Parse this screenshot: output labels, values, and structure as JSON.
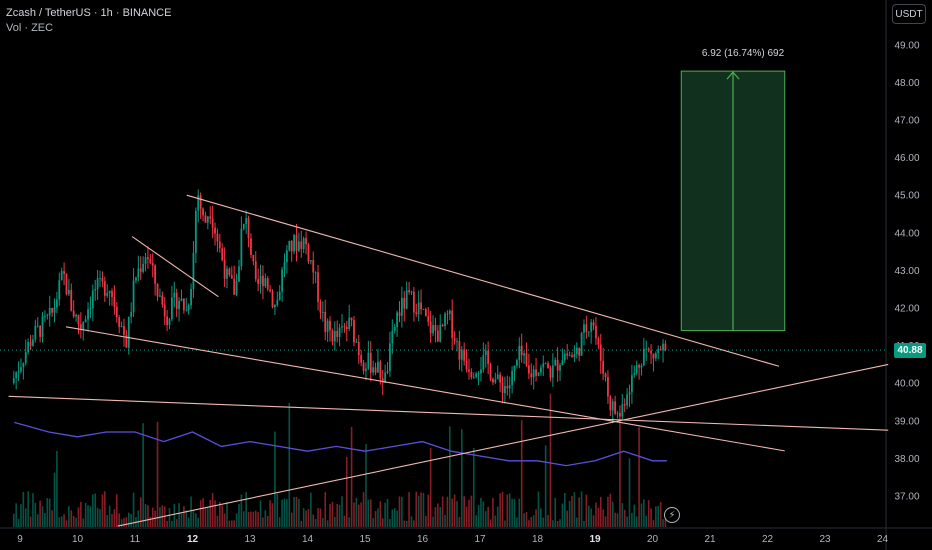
{
  "header": {
    "symbol_line": "Zcash / TetherUS · 1h · BINANCE",
    "volume_line": "Vol · ZEC"
  },
  "currency_button": "USDT",
  "current_price": "40.88",
  "measure_label": "6.92 (16.74%) 692",
  "logo_icon": "tradingview-bolt-icon",
  "colors": {
    "up": "#089981",
    "down": "#f23645",
    "trend": "#f0b8b0",
    "measure_fill": "#143a23",
    "measure_border": "#4caf50",
    "volume_ma": "#5b4fd8"
  },
  "chart_data": {
    "type": "candlestick",
    "title": "",
    "ylim": [
      36.3,
      49.4
    ],
    "y_ticks": [
      "37.00",
      "38.00",
      "39.00",
      "40.00",
      "41.00",
      "42.00",
      "43.00",
      "44.00",
      "45.00",
      "46.00",
      "47.00",
      "48.00",
      "49.00"
    ],
    "x_labels": [
      {
        "label": "9",
        "day": 9
      },
      {
        "label": "10",
        "day": 10
      },
      {
        "label": "11",
        "day": 11
      },
      {
        "label": "12",
        "day": 12
      },
      {
        "label": "13",
        "day": 13
      },
      {
        "label": "14",
        "day": 14
      },
      {
        "label": "15",
        "day": 15
      },
      {
        "label": "16",
        "day": 16
      },
      {
        "label": "17",
        "day": 17
      },
      {
        "label": "18",
        "day": 18
      },
      {
        "label": "19",
        "day": 19
      },
      {
        "label": "20",
        "day": 20
      },
      {
        "label": "21",
        "day": 21
      },
      {
        "label": "22",
        "day": 22
      },
      {
        "label": "23",
        "day": 23
      },
      {
        "label": "24",
        "day": 24
      }
    ],
    "x_range_days": [
      8.8,
      24.2
    ],
    "price_path": [
      [
        8.85,
        40.0
      ],
      [
        9.2,
        41.2
      ],
      [
        9.55,
        41.8
      ],
      [
        9.75,
        42.9
      ],
      [
        9.9,
        42.0
      ],
      [
        10.05,
        41.5
      ],
      [
        10.3,
        42.5
      ],
      [
        10.55,
        42.6
      ],
      [
        10.75,
        41.6
      ],
      [
        10.85,
        41.1
      ],
      [
        11.0,
        42.8
      ],
      [
        11.2,
        43.5
      ],
      [
        11.4,
        42.4
      ],
      [
        11.55,
        41.8
      ],
      [
        11.75,
        42.3
      ],
      [
        11.9,
        41.9
      ],
      [
        12.0,
        43.0
      ],
      [
        12.08,
        45.2
      ],
      [
        12.2,
        44.2
      ],
      [
        12.3,
        44.7
      ],
      [
        12.45,
        43.7
      ],
      [
        12.6,
        42.8
      ],
      [
        12.75,
        42.4
      ],
      [
        12.85,
        44.0
      ],
      [
        12.95,
        44.3
      ],
      [
        13.1,
        42.5
      ],
      [
        13.25,
        42.9
      ],
      [
        13.45,
        42.0
      ],
      [
        13.6,
        43.3
      ],
      [
        13.75,
        43.7
      ],
      [
        13.95,
        43.8
      ],
      [
        14.1,
        43.0
      ],
      [
        14.3,
        41.5
      ],
      [
        14.5,
        41.2
      ],
      [
        14.75,
        41.6
      ],
      [
        14.95,
        40.6
      ],
      [
        15.15,
        40.5
      ],
      [
        15.35,
        40.1
      ],
      [
        15.55,
        41.8
      ],
      [
        15.75,
        42.3
      ],
      [
        15.95,
        42.0
      ],
      [
        16.1,
        41.5
      ],
      [
        16.3,
        41.3
      ],
      [
        16.45,
        41.8
      ],
      [
        16.65,
        40.8
      ],
      [
        16.85,
        40.4
      ],
      [
        17.1,
        40.6
      ],
      [
        17.3,
        40.0
      ],
      [
        17.5,
        39.9
      ],
      [
        17.7,
        40.8
      ],
      [
        17.85,
        40.2
      ],
      [
        18.05,
        40.5
      ],
      [
        18.25,
        40.3
      ],
      [
        18.45,
        40.8
      ],
      [
        18.65,
        40.7
      ],
      [
        18.8,
        41.3
      ],
      [
        18.95,
        41.8
      ],
      [
        19.05,
        40.9
      ],
      [
        19.15,
        40.4
      ],
      [
        19.25,
        39.5
      ],
      [
        19.42,
        39.1
      ],
      [
        19.55,
        39.8
      ],
      [
        19.7,
        40.3
      ],
      [
        19.85,
        40.9
      ],
      [
        20.0,
        40.7
      ],
      [
        20.15,
        40.9
      ],
      [
        20.25,
        40.88
      ]
    ],
    "volume_ma_path": [
      [
        8.9,
        0.22
      ],
      [
        9.5,
        0.2
      ],
      [
        10.0,
        0.19
      ],
      [
        10.5,
        0.2
      ],
      [
        11.0,
        0.2
      ],
      [
        11.5,
        0.18
      ],
      [
        12.0,
        0.2
      ],
      [
        12.5,
        0.17
      ],
      [
        13.0,
        0.18
      ],
      [
        13.5,
        0.17
      ],
      [
        14.0,
        0.16
      ],
      [
        14.5,
        0.17
      ],
      [
        15.0,
        0.16
      ],
      [
        15.5,
        0.17
      ],
      [
        16.0,
        0.18
      ],
      [
        16.5,
        0.16
      ],
      [
        17.0,
        0.15
      ],
      [
        17.5,
        0.14
      ],
      [
        18.0,
        0.14
      ],
      [
        18.5,
        0.13
      ],
      [
        19.0,
        0.14
      ],
      [
        19.5,
        0.16
      ],
      [
        20.0,
        0.14
      ],
      [
        20.25,
        0.14
      ]
    ],
    "trendlines": [
      {
        "name": "falling-wedge-upper",
        "from": [
          11.9,
          45.0
        ],
        "to": [
          22.2,
          40.45
        ]
      },
      {
        "name": "falling-wedge-lower",
        "from": [
          9.8,
          41.5
        ],
        "to": [
          22.3,
          38.2
        ]
      },
      {
        "name": "horizontal-support",
        "from": [
          8.8,
          39.65
        ],
        "to": [
          24.1,
          38.75
        ]
      },
      {
        "name": "rising-support",
        "from": [
          10.7,
          36.2
        ],
        "to": [
          24.1,
          40.5
        ]
      },
      {
        "name": "short-resistance",
        "from": [
          10.95,
          43.9
        ],
        "to": [
          12.45,
          42.3
        ]
      }
    ],
    "measure": {
      "from_day": 20.5,
      "to_day": 22.3,
      "bottom": 41.4,
      "top": 48.3,
      "change": 6.92,
      "percent": 16.74,
      "bars": 692
    }
  }
}
